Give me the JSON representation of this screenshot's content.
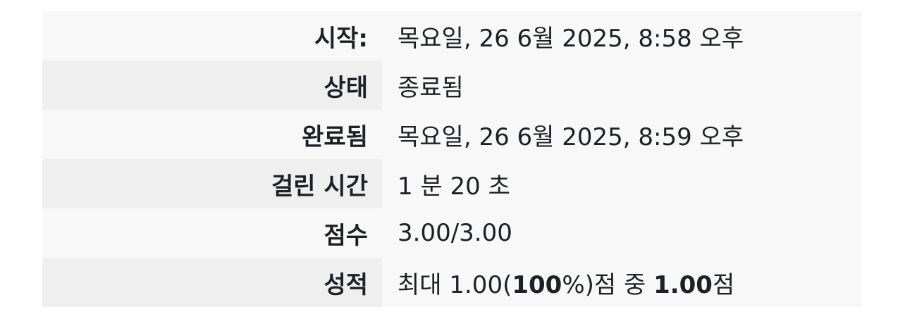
{
  "summary": {
    "rows": [
      {
        "label": "시작:",
        "value": "목요일, 26 6월 2025, 8:58 오후"
      },
      {
        "label": "상태",
        "value": "종료됨"
      },
      {
        "label": "완료됨",
        "value": "목요일, 26 6월 2025, 8:59 오후"
      },
      {
        "label": "걸린 시간",
        "value": "1 분 20 초"
      },
      {
        "label": "점수",
        "value": "3.00/3.00"
      }
    ],
    "grade": {
      "label": "성적",
      "prefix": "최대 1.00(",
      "percent": "100",
      "suffix": "%)점 중 ",
      "score": "1.00",
      "unit": "점"
    }
  }
}
